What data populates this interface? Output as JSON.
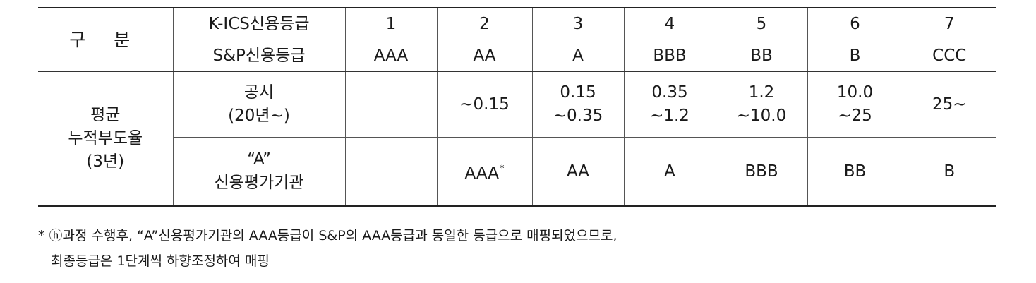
{
  "header": {
    "gubun": "구 분",
    "kics_label": "K-ICS신용등급",
    "sp_label": "S&P신용등급",
    "kics_grades": [
      "1",
      "2",
      "3",
      "4",
      "5",
      "6",
      "7"
    ],
    "sp_grades": [
      "AAA",
      "AA",
      "A",
      "BBB",
      "BB",
      "B",
      "CCC"
    ]
  },
  "body": {
    "group_label_lines": [
      "평균",
      "누적부도율",
      "(3년)"
    ],
    "disclosure_label_lines": [
      "공시",
      "(20년∼)"
    ],
    "disclosure_values": [
      [],
      [
        "∼0.15"
      ],
      [
        "0.15",
        "∼0.35"
      ],
      [
        "0.35",
        "∼1.2"
      ],
      [
        "1.2",
        "∼10.0"
      ],
      [
        "10.0",
        "∼25"
      ],
      [
        "25∼"
      ]
    ],
    "agency_label_lines": [
      "“A”",
      "신용평가기관"
    ],
    "agency_values": [
      "",
      "AAA",
      "AA",
      "A",
      "BBB",
      "BB",
      "B"
    ],
    "agency_footnote_mark": "*"
  },
  "footnote": {
    "line1": "* ⓗ과정 수행후, “A”신용평가기관의 AAA등급이 S&P의 AAA등급과 동일한 등급으로 매핑되었으므로,",
    "line2": "최종등급은 1단계씩 하향조정하여 매핑"
  }
}
